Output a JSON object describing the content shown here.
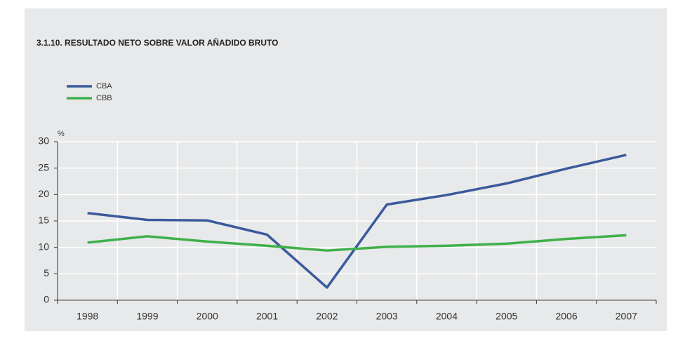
{
  "chart_data": {
    "type": "line",
    "title": "3.1.10. RESULTADO NETO SOBRE VALOR AÑADIDO BRUTO",
    "y_label": "%",
    "categories": [
      "1998",
      "1999",
      "2000",
      "2001",
      "2002",
      "2003",
      "2004",
      "2005",
      "2006",
      "2007"
    ],
    "series": [
      {
        "name": "CBA",
        "color": "#3a5a9c",
        "values": [
          16.5,
          15.2,
          15.1,
          12.4,
          2.4,
          18.1,
          19.9,
          22.1,
          24.9,
          27.5
        ]
      },
      {
        "name": "CBB",
        "color": "#3fb04a",
        "values": [
          10.9,
          12.1,
          11.1,
          10.3,
          9.4,
          10.1,
          10.3,
          10.7,
          11.6,
          12.3
        ]
      }
    ],
    "ylim": [
      0,
      30
    ],
    "yticks": [
      0,
      5,
      10,
      15,
      20,
      25,
      30
    ],
    "grid": true,
    "legend": "top-left"
  }
}
